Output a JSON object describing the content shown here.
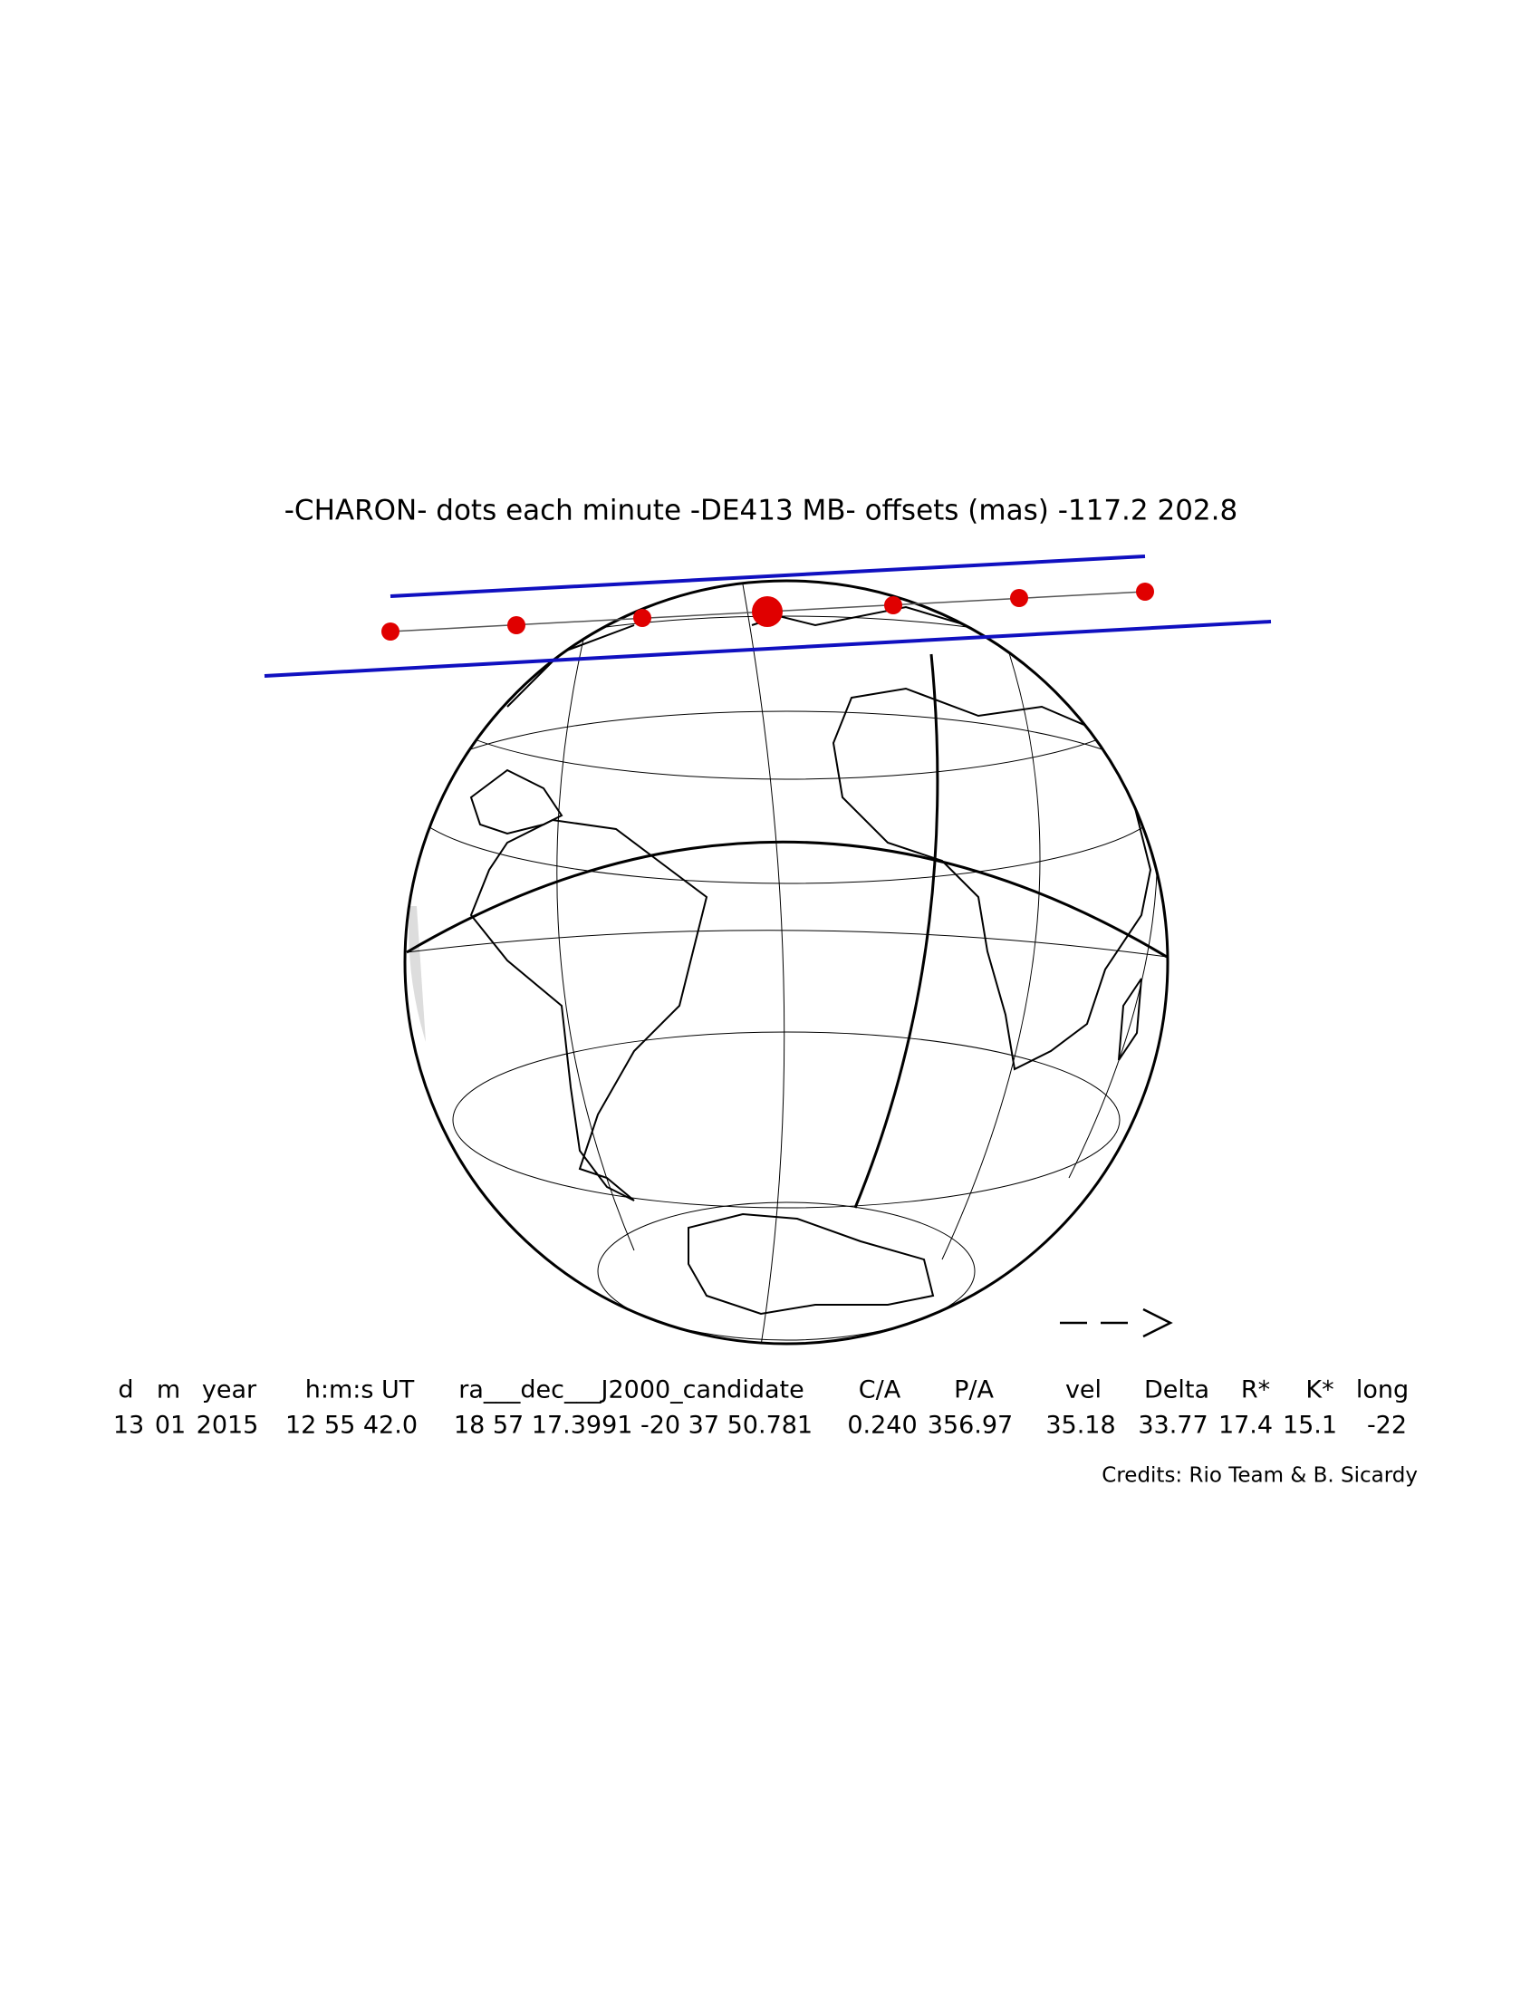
{
  "title": "-CHARON- dots each minute -DE413 MB- offsets (mas) -117.2   202.8",
  "table": {
    "headers": [
      "d",
      "m",
      "year",
      "h:m:s UT",
      "ra___dec___J2000_candidate",
      "C/A",
      "P/A",
      "vel",
      "Delta",
      "R*",
      "K*",
      "long"
    ],
    "values": [
      "13",
      "01",
      "2015",
      "12 55 42.0",
      "18 57 17.3991 -20 37 50.781",
      "0.240",
      "356.97",
      "35.18",
      "33.77",
      "17.4",
      "15.1",
      "-22"
    ]
  },
  "credits": "Credits: Rio Team & B. Sicardy"
}
